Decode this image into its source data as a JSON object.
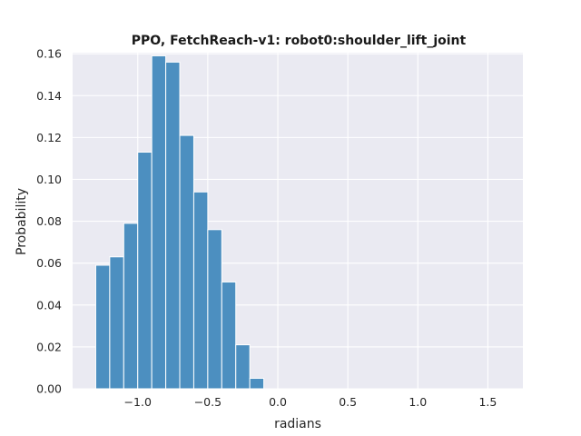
{
  "chart_data": {
    "type": "bar",
    "title": "PPO, FetchReach-v1: robot0:shoulder_lift_joint",
    "xlabel": "radians",
    "ylabel": "Probability",
    "xlim": [
      -1.465,
      1.75
    ],
    "ylim": [
      0,
      0.1605
    ],
    "xticks": [
      -1.0,
      -0.5,
      0.0,
      0.5,
      1.0,
      1.5
    ],
    "xtick_labels": [
      "−1.0",
      "−0.5",
      "0.0",
      "0.5",
      "1.0",
      "1.5"
    ],
    "yticks": [
      0.0,
      0.02,
      0.04,
      0.06,
      0.08,
      0.1,
      0.12,
      0.14,
      0.16
    ],
    "ytick_labels": [
      "0.00",
      "0.02",
      "0.04",
      "0.06",
      "0.08",
      "0.10",
      "0.12",
      "0.14",
      "0.16"
    ],
    "bin_edges": [
      -1.3,
      -1.2,
      -1.1,
      -1.0,
      -0.9,
      -0.8,
      -0.7,
      -0.6,
      -0.5,
      -0.4,
      -0.3,
      -0.2,
      -0.1
    ],
    "values": [
      0.059,
      0.063,
      0.079,
      0.113,
      0.159,
      0.156,
      0.121,
      0.094,
      0.076,
      0.051,
      0.021,
      0.005
    ],
    "grid": true,
    "bar_color": "#4c8fc0",
    "background_color": "#eaeaf2"
  }
}
